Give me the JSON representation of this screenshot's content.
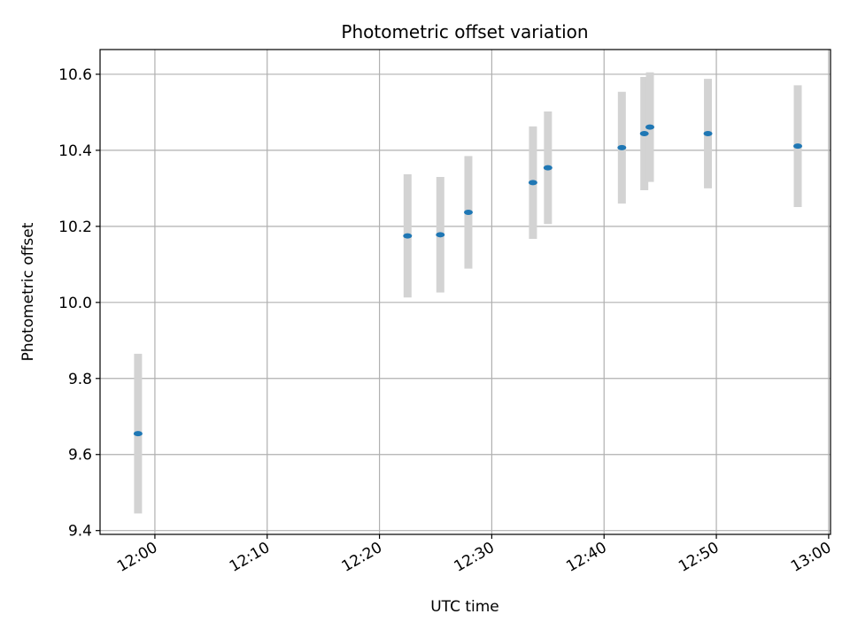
{
  "chart_data": {
    "type": "scatter",
    "title": "Photometric offset variation",
    "xlabel": "UTC time",
    "ylabel": "Photometric offset",
    "x_ticks": [
      "12:00",
      "12:10",
      "12:20",
      "12:30",
      "12:40",
      "12:50",
      "13:00"
    ],
    "y_ticks": [
      "9.4",
      "9.6",
      "9.8",
      "10.0",
      "10.2",
      "10.4",
      "10.6"
    ],
    "xlim": [
      "11:55:07",
      "13:00:10"
    ],
    "ylim": [
      9.39,
      10.665
    ],
    "grid": true,
    "colors": {
      "point": "#1f77b4",
      "errorbar": "#d3d3d3",
      "grid": "#b0b0b0",
      "axes": "#000000"
    },
    "series": [
      {
        "points": [
          {
            "x": "11:58:30",
            "y": 9.655,
            "yerr": 0.21
          },
          {
            "x": "12:22:30",
            "y": 10.175,
            "yerr": 0.162
          },
          {
            "x": "12:25:25",
            "y": 10.178,
            "yerr": 0.152
          },
          {
            "x": "12:27:55",
            "y": 10.237,
            "yerr": 0.148
          },
          {
            "x": "12:33:40",
            "y": 10.315,
            "yerr": 0.148
          },
          {
            "x": "12:35:00",
            "y": 10.354,
            "yerr": 0.148
          },
          {
            "x": "12:41:35",
            "y": 10.407,
            "yerr": 0.147
          },
          {
            "x": "12:43:35",
            "y": 10.444,
            "yerr": 0.149
          },
          {
            "x": "12:44:05",
            "y": 10.461,
            "yerr": 0.144
          },
          {
            "x": "12:49:15",
            "y": 10.444,
            "yerr": 0.144
          },
          {
            "x": "12:57:15",
            "y": 10.411,
            "yerr": 0.16
          }
        ]
      }
    ]
  }
}
